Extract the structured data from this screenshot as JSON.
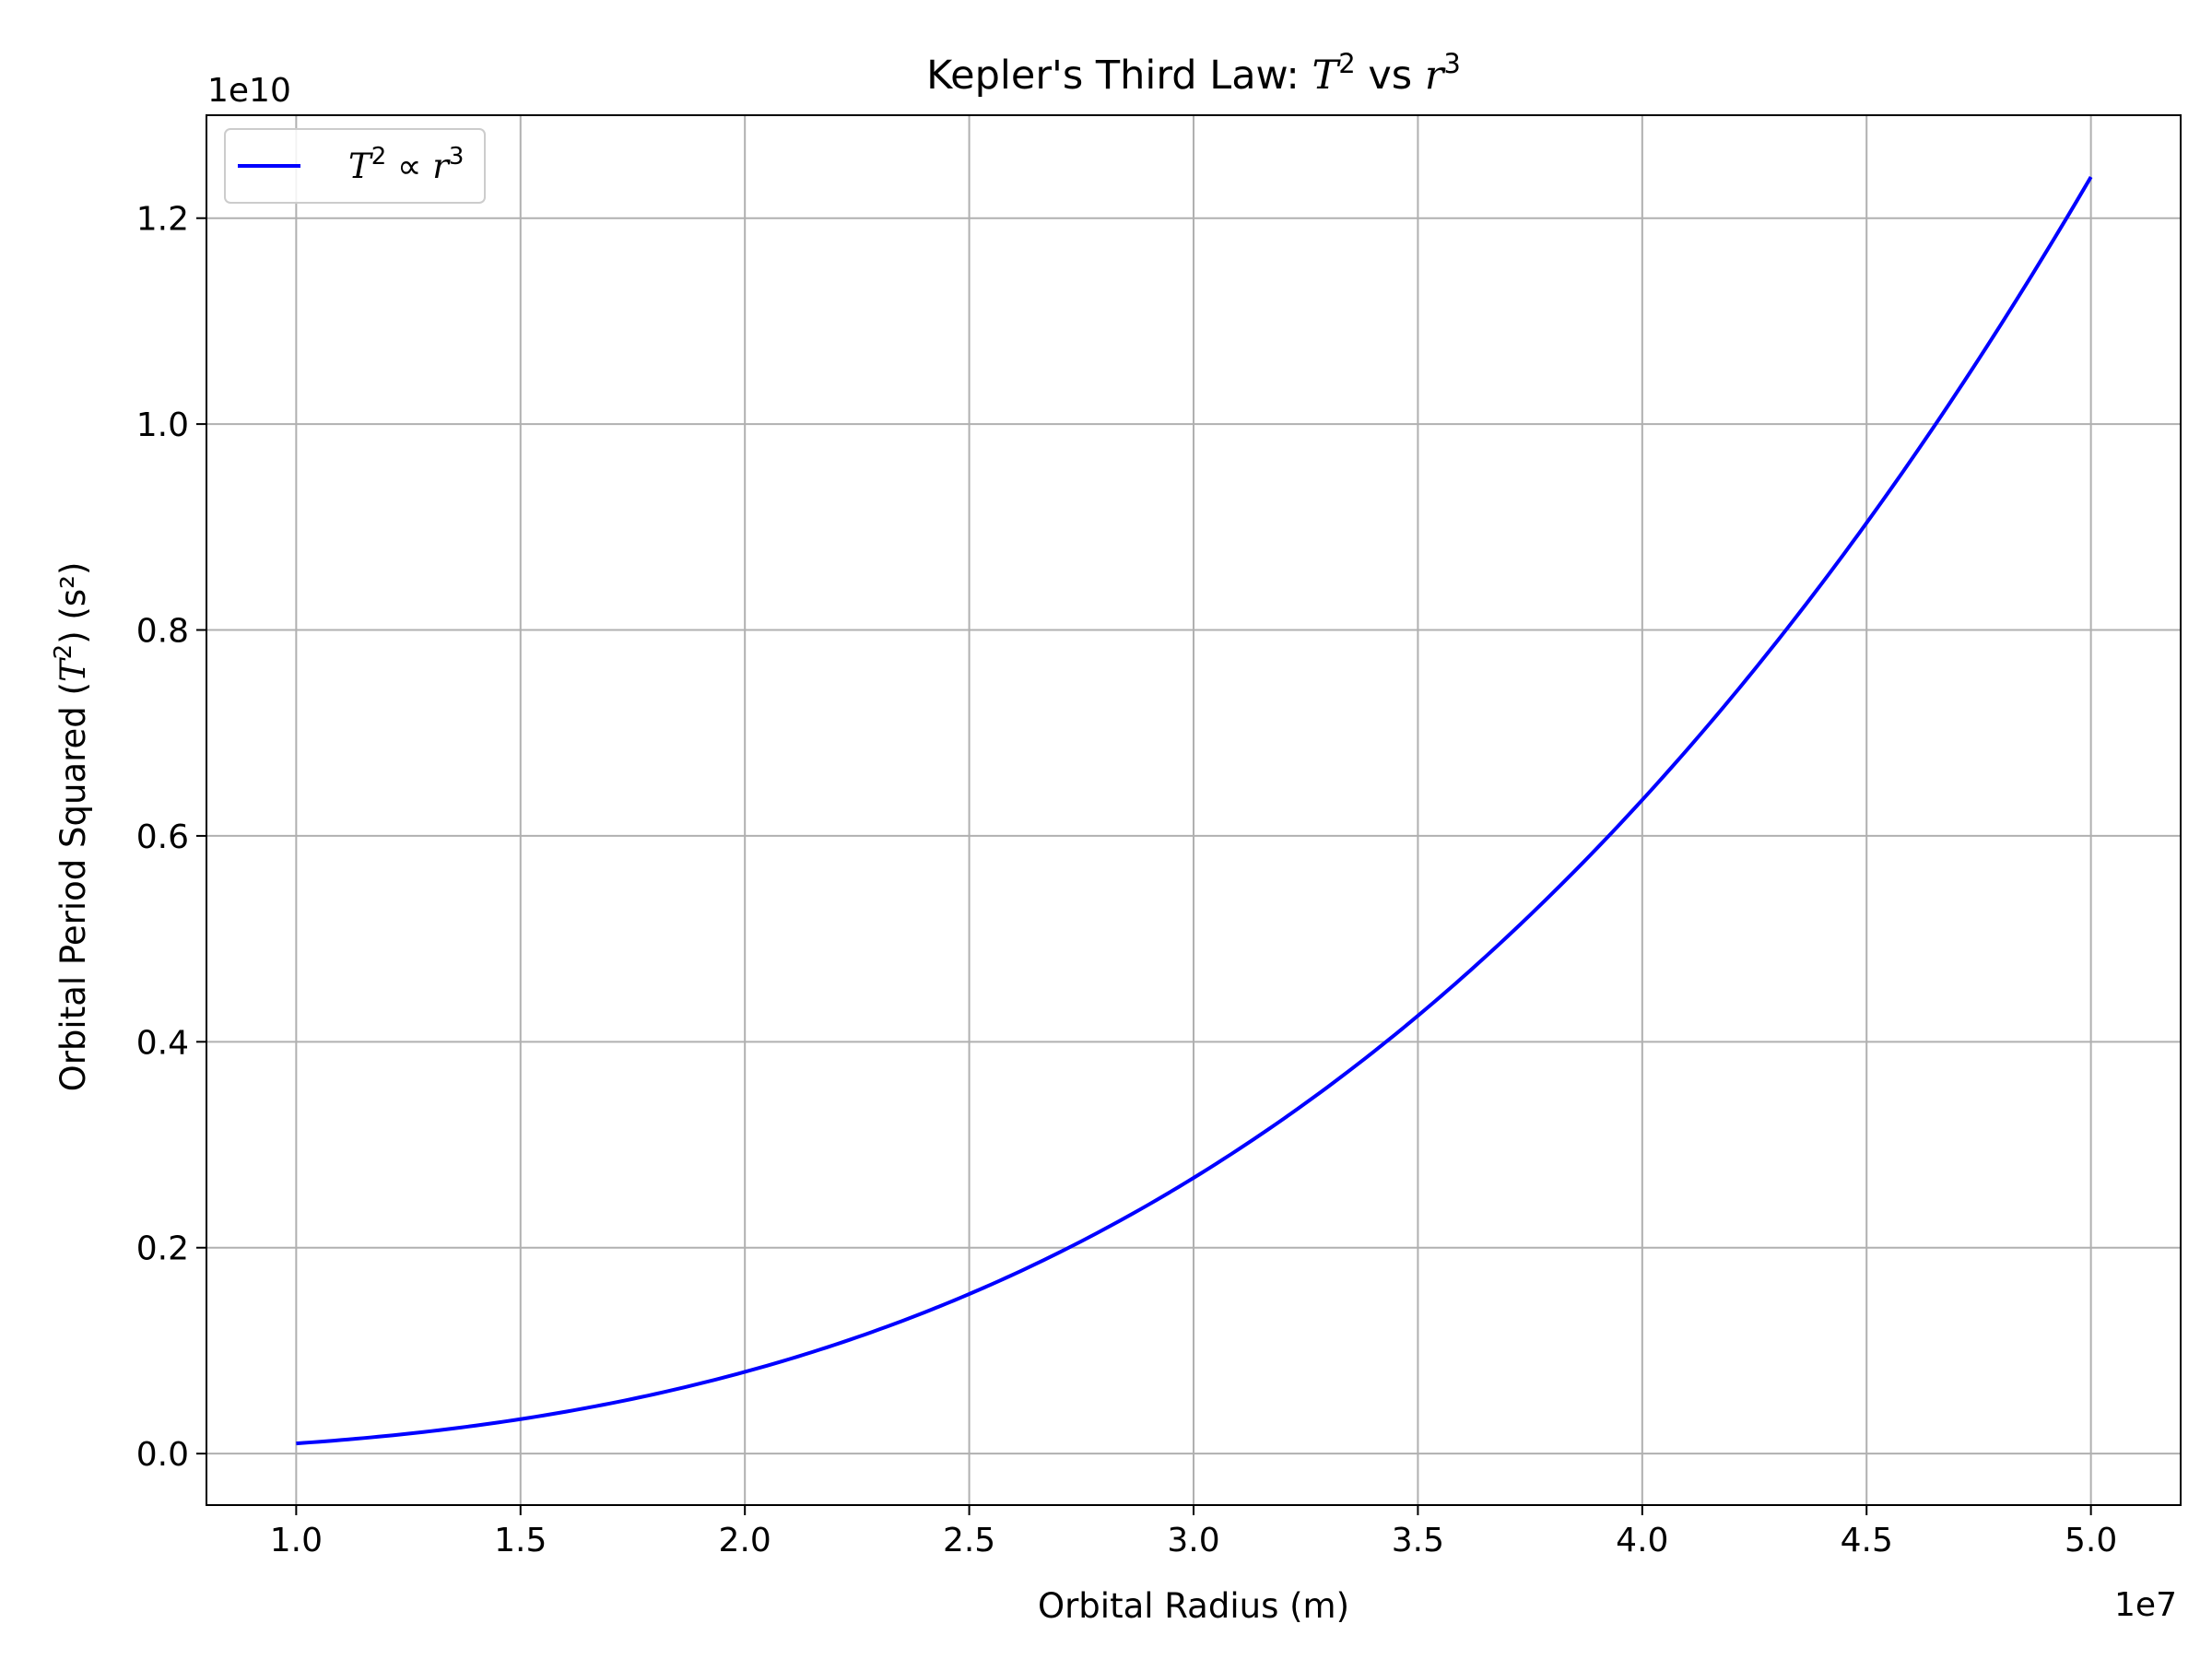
{
  "chart_data": {
    "type": "line",
    "title": {
      "prefix": "Kepler's Third Law: ",
      "t": "T",
      "exp1": "2",
      "mid": " vs ",
      "r": "r",
      "exp2": "3"
    },
    "xlabel": "Orbital Radius (m)",
    "ylabel": {
      "prefix": "Orbital Period Squared (",
      "t": "T",
      "exp": "2",
      "suffix": ") (s²)"
    },
    "x_scale_label": "1e7",
    "y_scale_label": "1e10",
    "xlim": [
      8000000.0,
      52000000.0
    ],
    "ylim": [
      -500000000.0,
      13000000000.0
    ],
    "x_ticks": [
      10000000.0,
      15000000.0,
      20000000.0,
      25000000.0,
      30000000.0,
      35000000.0,
      40000000.0,
      45000000.0,
      50000000.0
    ],
    "x_tick_labels": [
      "1.0",
      "1.5",
      "2.0",
      "2.5",
      "3.0",
      "3.5",
      "4.0",
      "4.5",
      "5.0"
    ],
    "y_ticks": [
      0,
      2000000000.0,
      4000000000.0,
      6000000000.0,
      8000000000.0,
      10000000000.0,
      12000000000.0
    ],
    "y_tick_labels": [
      "0.0",
      "0.2",
      "0.4",
      "0.6",
      "0.8",
      "1.0",
      "1.2"
    ],
    "grid": true,
    "legend_placement": "upper-left",
    "series": [
      {
        "name": {
          "t": "T",
          "exp1": "2",
          "prop": " ∝ ",
          "r": "r",
          "exp2": "3"
        },
        "color": "#0000ff",
        "x": [
          10000000.0,
          15000000.0,
          20000000.0,
          25000000.0,
          30000000.0,
          35000000.0,
          40000000.0,
          45000000.0,
          50000000.0
        ],
        "y": [
          99000000.0,
          335000000.0,
          794000000.0,
          1550000000.0,
          2678000000.0,
          4253000000.0,
          6349000000.0,
          9040000000.0,
          12400000000.0
        ]
      }
    ]
  }
}
